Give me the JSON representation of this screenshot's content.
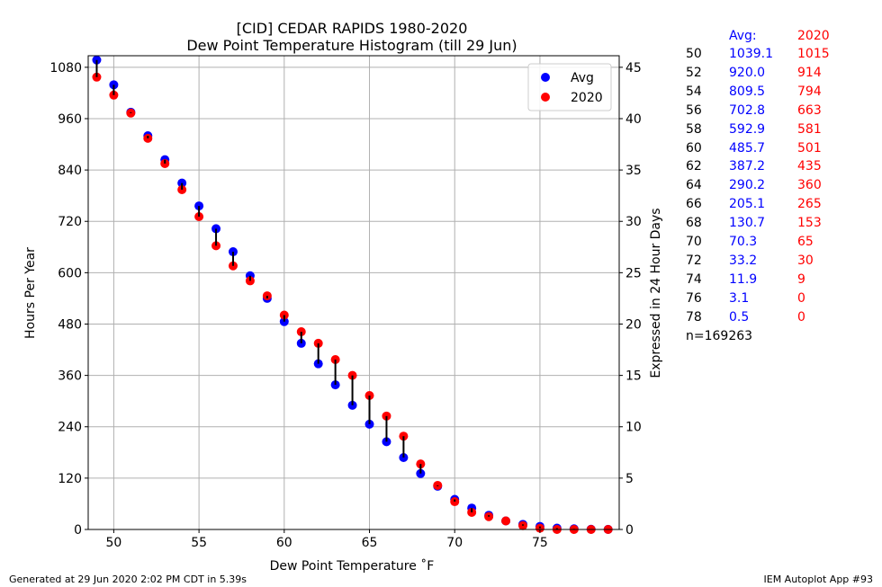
{
  "chart_data": {
    "type": "scatter",
    "title": "[CID] CEDAR RAPIDS 1980-2020",
    "subtitle": "Dew Point Temperature Histogram (till 29 Jun)",
    "xlabel": "Dew Point Temperature ˚F",
    "ylabel": "Hours Per Year",
    "ylabel_right": "Expressed in 24 Hour Days",
    "xlim": [
      48.5,
      79.65
    ],
    "ylim": [
      0,
      1107
    ],
    "xticks": [
      50,
      55,
      60,
      65,
      70,
      75
    ],
    "yticks": [
      0,
      120,
      240,
      360,
      480,
      600,
      720,
      840,
      960,
      1080
    ],
    "yticks_right": [
      0,
      5,
      10,
      15,
      20,
      25,
      30,
      35,
      40,
      45
    ],
    "grid": true,
    "legend_placement": "top-right",
    "x": [
      49,
      50,
      51,
      52,
      53,
      54,
      55,
      56,
      57,
      58,
      59,
      60,
      61,
      62,
      63,
      64,
      65,
      66,
      67,
      68,
      69,
      70,
      71,
      72,
      73,
      74,
      75,
      76,
      77,
      78,
      79
    ],
    "series": [
      {
        "name": "Avg",
        "color": "#0000ff",
        "values": [
          1097,
          1039.1,
          975,
          920.0,
          864,
          809.5,
          756,
          702.8,
          649,
          592.9,
          540,
          485.7,
          435,
          387.2,
          338,
          290.2,
          246,
          205.1,
          168,
          130.7,
          101,
          70.3,
          50,
          33.2,
          20,
          11.9,
          7,
          3.1,
          1.5,
          0.5,
          0.2
        ]
      },
      {
        "name": "2020",
        "color": "#ff0000",
        "values": [
          1057,
          1015,
          973,
          914,
          855,
          794,
          731,
          663,
          616,
          581,
          546,
          501,
          462,
          435,
          397,
          360,
          313,
          265,
          218,
          153,
          103,
          65,
          40,
          30,
          20,
          9,
          3,
          0,
          0,
          0,
          0
        ]
      }
    ]
  },
  "table": {
    "header_avg": "Avg:",
    "header_year": "2020",
    "rows": [
      [
        "50",
        "1039.1",
        "1015"
      ],
      [
        "52",
        "920.0",
        "914"
      ],
      [
        "54",
        "809.5",
        "794"
      ],
      [
        "56",
        "702.8",
        "663"
      ],
      [
        "58",
        "592.9",
        "581"
      ],
      [
        "60",
        "485.7",
        "501"
      ],
      [
        "62",
        "387.2",
        "435"
      ],
      [
        "64",
        "290.2",
        "360"
      ],
      [
        "66",
        "205.1",
        "265"
      ],
      [
        "68",
        "130.7",
        "153"
      ],
      [
        "70",
        "70.3",
        "65"
      ],
      [
        "72",
        "33.2",
        "30"
      ],
      [
        "74",
        "11.9",
        "9"
      ],
      [
        "76",
        "3.1",
        "0"
      ],
      [
        "78",
        "0.5",
        "0"
      ]
    ],
    "count": "n=169263"
  },
  "footer": {
    "left": "Generated at 29 Jun 2020 2:02 PM CDT in 5.39s",
    "right": "IEM Autoplot App #93"
  }
}
